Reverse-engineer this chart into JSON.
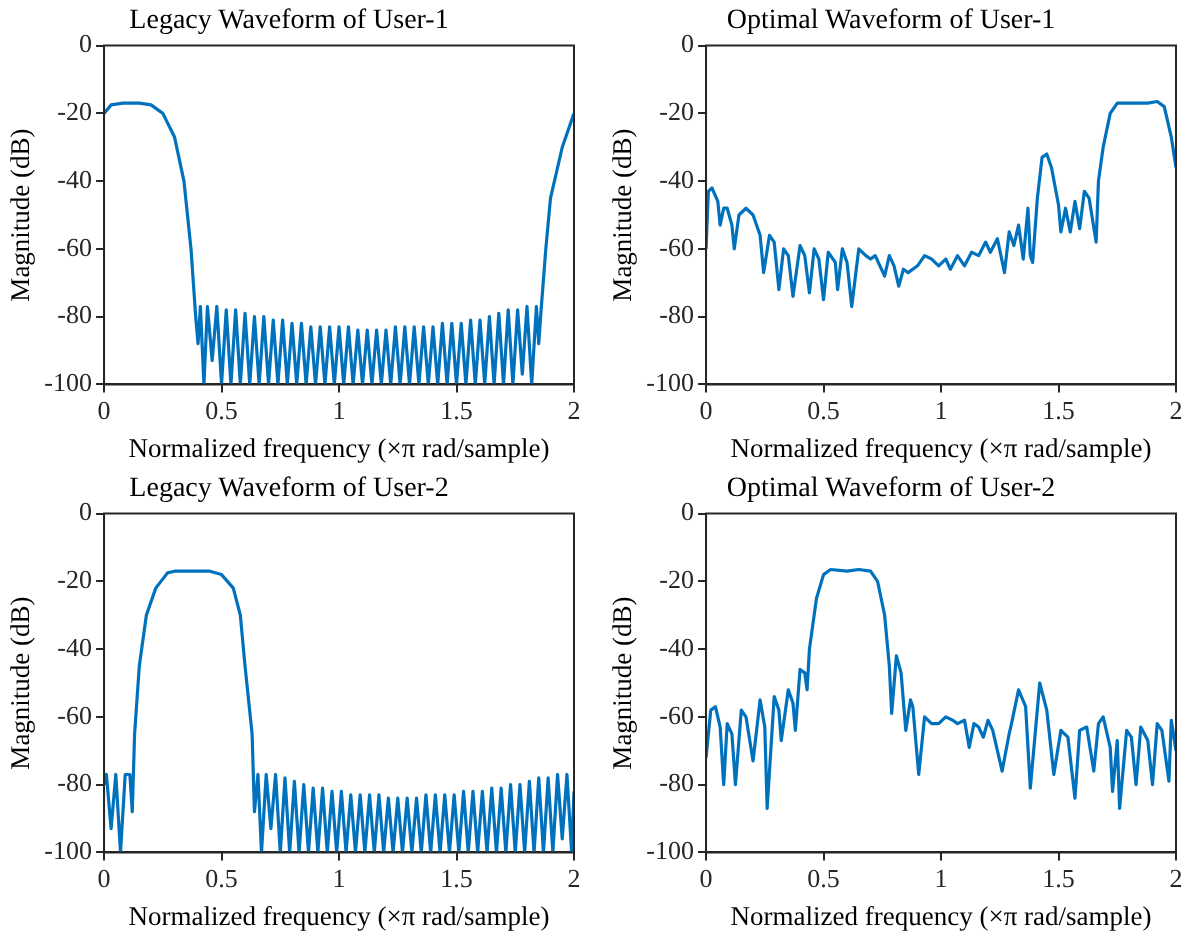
{
  "chart_data": [
    {
      "type": "line",
      "title": "Legacy Waveform of User-1",
      "xlabel": "Normalized frequency (×π rad/sample)",
      "ylabel": "Magnitude (dB)",
      "color": "#0072bd",
      "xlim": [
        0,
        2
      ],
      "xticks": [
        0,
        0.5,
        1,
        1.5,
        2
      ],
      "ylim": [
        -100,
        0
      ],
      "yticks": [
        -100,
        -80,
        -60,
        -40,
        -20,
        0
      ],
      "x": [
        0,
        0.03,
        0.08,
        0.15,
        0.2,
        0.25,
        0.3,
        0.34,
        0.37,
        0.39,
        0.4,
        0.41,
        0.425,
        0.44,
        0.46,
        0.48,
        0.5,
        0.52,
        0.54,
        0.56,
        0.58,
        0.6,
        0.62,
        0.64,
        0.66,
        0.68,
        0.7,
        0.72,
        0.74,
        0.76,
        0.78,
        0.8,
        0.82,
        0.84,
        0.86,
        0.88,
        0.9,
        0.92,
        0.94,
        0.96,
        0.98,
        1,
        1.02,
        1.04,
        1.06,
        1.08,
        1.1,
        1.12,
        1.14,
        1.16,
        1.18,
        1.2,
        1.22,
        1.24,
        1.26,
        1.28,
        1.3,
        1.32,
        1.34,
        1.36,
        1.38,
        1.4,
        1.42,
        1.44,
        1.46,
        1.48,
        1.5,
        1.52,
        1.54,
        1.56,
        1.58,
        1.6,
        1.62,
        1.64,
        1.66,
        1.68,
        1.7,
        1.72,
        1.74,
        1.76,
        1.78,
        1.8,
        1.82,
        1.84,
        1.85,
        1.86,
        1.88,
        1.9,
        1.95,
        2
      ],
      "values": [
        -20,
        -17.5,
        -17,
        -17,
        -17.5,
        -20,
        -27,
        -40,
        -60,
        -80,
        -88,
        -77,
        -100,
        -77,
        -93,
        -77,
        -100,
        -78,
        -100,
        -78,
        -100,
        -79,
        -100,
        -80,
        -100,
        -80,
        -100,
        -81,
        -100,
        -81,
        -100,
        -82,
        -100,
        -82,
        -100,
        -83,
        -100,
        -83,
        -100,
        -83,
        -100,
        -83,
        -100,
        -83,
        -100,
        -84,
        -100,
        -84,
        -100,
        -84,
        -100,
        -84,
        -100,
        -83,
        -100,
        -83,
        -100,
        -83,
        -100,
        -83,
        -100,
        -83,
        -100,
        -82,
        -100,
        -82,
        -100,
        -82,
        -100,
        -81,
        -100,
        -81,
        -100,
        -80,
        -100,
        -79,
        -100,
        -78,
        -100,
        -78,
        -97,
        -77,
        -100,
        -77,
        -88,
        -78,
        -60,
        -45,
        -30,
        -20
      ]
    },
    {
      "type": "line",
      "title": "Optimal Waveform of User-1",
      "xlabel": "Normalized frequency (×π rad/sample)",
      "ylabel": "Magnitude (dB)",
      "color": "#0072bd",
      "xlim": [
        0,
        2
      ],
      "xticks": [
        0,
        0.5,
        1,
        1.5,
        2
      ],
      "ylim": [
        -100,
        0
      ],
      "yticks": [
        -100,
        -80,
        -60,
        -40,
        -20,
        0
      ],
      "x": [
        0,
        0.01,
        0.025,
        0.05,
        0.06,
        0.075,
        0.09,
        0.11,
        0.12,
        0.14,
        0.17,
        0.2,
        0.23,
        0.245,
        0.27,
        0.29,
        0.31,
        0.33,
        0.35,
        0.37,
        0.4,
        0.42,
        0.44,
        0.46,
        0.48,
        0.5,
        0.52,
        0.55,
        0.56,
        0.58,
        0.6,
        0.62,
        0.65,
        0.68,
        0.7,
        0.72,
        0.74,
        0.76,
        0.78,
        0.8,
        0.82,
        0.84,
        0.86,
        0.9,
        0.93,
        0.96,
        0.99,
        1.02,
        1.04,
        1.07,
        1.1,
        1.13,
        1.16,
        1.19,
        1.21,
        1.24,
        1.27,
        1.29,
        1.31,
        1.33,
        1.35,
        1.37,
        1.38,
        1.39,
        1.41,
        1.43,
        1.45,
        1.47,
        1.5,
        1.51,
        1.53,
        1.55,
        1.57,
        1.59,
        1.61,
        1.63,
        1.66,
        1.67,
        1.69,
        1.72,
        1.75,
        1.8,
        1.84,
        1.88,
        1.92,
        1.95,
        1.98,
        2
      ],
      "values": [
        -60,
        -43,
        -42,
        -46,
        -53,
        -48,
        -48,
        -53,
        -60,
        -50,
        -48,
        -50,
        -56,
        -67,
        -56,
        -58,
        -72,
        -60,
        -62,
        -74,
        -59,
        -62,
        -73,
        -60,
        -63,
        -75,
        -61,
        -64,
        -72,
        -60,
        -64,
        -77,
        -60,
        -62,
        -63,
        -62,
        -65,
        -68,
        -62,
        -65,
        -71,
        -66,
        -67,
        -65,
        -62,
        -63,
        -65,
        -63,
        -66,
        -62,
        -65,
        -61,
        -62,
        -58,
        -61,
        -57,
        -67,
        -55,
        -59,
        -53,
        -63,
        -48,
        -62,
        -64,
        -45,
        -33,
        -32,
        -36,
        -47,
        -55,
        -48,
        -55,
        -46,
        -54,
        -43,
        -45,
        -58,
        -40,
        -30,
        -20,
        -17,
        -17,
        -17,
        -17,
        -16.5,
        -18,
        -27,
        -36
      ]
    },
    {
      "type": "line",
      "title": "Legacy Waveform of User-2",
      "xlabel": "Normalized frequency (×π rad/sample)",
      "ylabel": "Magnitude (dB)",
      "color": "#0072bd",
      "xlim": [
        0,
        2
      ],
      "xticks": [
        0,
        0.5,
        1,
        1.5,
        2
      ],
      "ylim": [
        -100,
        0
      ],
      "yticks": [
        -100,
        -80,
        -60,
        -40,
        -20,
        0
      ],
      "x": [
        0,
        0.01,
        0.03,
        0.05,
        0.07,
        0.09,
        0.11,
        0.12,
        0.13,
        0.15,
        0.18,
        0.22,
        0.27,
        0.3,
        0.45,
        0.5,
        0.55,
        0.58,
        0.6,
        0.63,
        0.64,
        0.655,
        0.67,
        0.69,
        0.71,
        0.73,
        0.75,
        0.77,
        0.79,
        0.81,
        0.83,
        0.85,
        0.87,
        0.89,
        0.91,
        0.93,
        0.95,
        0.97,
        0.99,
        1.01,
        1.03,
        1.05,
        1.07,
        1.09,
        1.11,
        1.13,
        1.15,
        1.17,
        1.19,
        1.21,
        1.23,
        1.25,
        1.27,
        1.29,
        1.31,
        1.33,
        1.35,
        1.37,
        1.39,
        1.41,
        1.43,
        1.45,
        1.47,
        1.49,
        1.51,
        1.53,
        1.55,
        1.57,
        1.59,
        1.61,
        1.63,
        1.65,
        1.67,
        1.69,
        1.71,
        1.73,
        1.75,
        1.77,
        1.79,
        1.81,
        1.83,
        1.85,
        1.87,
        1.89,
        1.91,
        1.93,
        1.95,
        1.97,
        1.99,
        2
      ],
      "values": [
        -80,
        -77,
        -93,
        -77,
        -100,
        -77,
        -77,
        -88,
        -65,
        -45,
        -30,
        -22,
        -17.5,
        -17,
        -17,
        -18,
        -22,
        -30,
        -45,
        -65,
        -88,
        -77,
        -100,
        -77,
        -93,
        -77,
        -100,
        -78,
        -100,
        -79,
        -100,
        -80,
        -100,
        -81,
        -100,
        -81,
        -100,
        -82,
        -100,
        -82,
        -100,
        -83,
        -100,
        -83,
        -100,
        -83,
        -100,
        -83,
        -100,
        -84,
        -100,
        -84,
        -100,
        -84,
        -100,
        -84,
        -100,
        -83,
        -100,
        -83,
        -100,
        -83,
        -100,
        -83,
        -100,
        -82,
        -100,
        -82,
        -100,
        -82,
        -100,
        -81,
        -100,
        -81,
        -100,
        -80,
        -100,
        -80,
        -100,
        -79,
        -100,
        -78,
        -100,
        -78,
        -100,
        -77,
        -96,
        -77,
        -100,
        -82
      ]
    },
    {
      "type": "line",
      "title": "Optimal Waveform of User-2",
      "xlabel": "Normalized frequency (×π rad/sample)",
      "ylabel": "Magnitude (dB)",
      "color": "#0072bd",
      "xlim": [
        0,
        2
      ],
      "xticks": [
        0,
        0.5,
        1,
        1.5,
        2
      ],
      "ylim": [
        -100,
        0
      ],
      "yticks": [
        -100,
        -80,
        -60,
        -40,
        -20,
        0
      ],
      "x": [
        0,
        0.02,
        0.04,
        0.06,
        0.075,
        0.09,
        0.11,
        0.125,
        0.15,
        0.17,
        0.2,
        0.23,
        0.25,
        0.26,
        0.29,
        0.31,
        0.32,
        0.35,
        0.37,
        0.38,
        0.4,
        0.42,
        0.43,
        0.44,
        0.47,
        0.5,
        0.53,
        0.6,
        0.65,
        0.7,
        0.73,
        0.76,
        0.78,
        0.79,
        0.81,
        0.83,
        0.85,
        0.87,
        0.88,
        0.905,
        0.93,
        0.96,
        0.99,
        1.02,
        1.05,
        1.07,
        1.1,
        1.12,
        1.14,
        1.16,
        1.18,
        1.2,
        1.22,
        1.26,
        1.29,
        1.3,
        1.33,
        1.36,
        1.38,
        1.42,
        1.45,
        1.48,
        1.51,
        1.54,
        1.57,
        1.59,
        1.62,
        1.65,
        1.67,
        1.69,
        1.72,
        1.73,
        1.75,
        1.76,
        1.79,
        1.81,
        1.83,
        1.85,
        1.88,
        1.9,
        1.92,
        1.94,
        1.97,
        1.98,
        2
      ],
      "values": [
        -72,
        -58,
        -57,
        -63,
        -80,
        -62,
        -65,
        -80,
        -58,
        -60,
        -73,
        -55,
        -63,
        -87,
        -54,
        -58,
        -67,
        -52,
        -56,
        -64,
        -46,
        -47,
        -52,
        -40,
        -25,
        -18,
        -16.5,
        -17,
        -16.5,
        -17,
        -20,
        -30,
        -45,
        -59,
        -42,
        -47,
        -64,
        -55,
        -57,
        -77,
        -60,
        -62,
        -62,
        -60,
        -61,
        -62,
        -61,
        -69,
        -62,
        -63,
        -66,
        -61,
        -64,
        -76,
        -65,
        -62,
        -52,
        -57,
        -81,
        -50,
        -58,
        -77,
        -64,
        -66,
        -84,
        -64,
        -63,
        -76,
        -62,
        -60,
        -69,
        -82,
        -67,
        -87,
        -64,
        -66,
        -80,
        -63,
        -67,
        -80,
        -62,
        -64,
        -79,
        -61,
        -70
      ]
    }
  ]
}
